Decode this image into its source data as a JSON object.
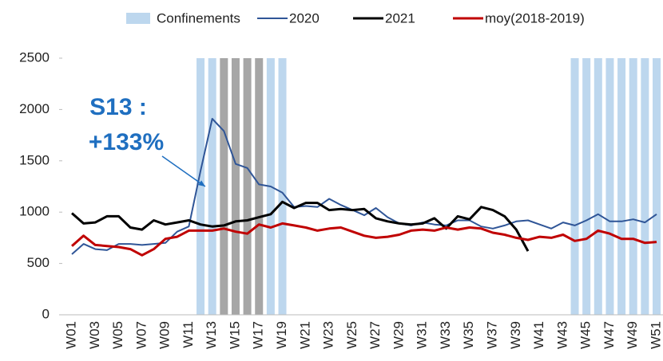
{
  "chart_data": {
    "type": "line",
    "categories": [
      "W01",
      null,
      "W03",
      null,
      "W05",
      null,
      "W07",
      null,
      "W09",
      null,
      "W11",
      null,
      "W13",
      null,
      "W15",
      null,
      "W17",
      null,
      "W19",
      null,
      "W21",
      null,
      "W23",
      null,
      "W25",
      null,
      "W27",
      null,
      "W29",
      null,
      "W31",
      null,
      "W33",
      null,
      "W35",
      null,
      "W37",
      null,
      "W39",
      null,
      "W41",
      null,
      "W43",
      null,
      "W45",
      null,
      "W47",
      null,
      "W49",
      null,
      "W51"
    ],
    "ylim": [
      0,
      2500
    ],
    "yticks": [
      0,
      500,
      1000,
      1500,
      2000,
      2500
    ],
    "annotation": [
      "S13 :",
      "+133%"
    ],
    "annotation_point": 12,
    "series": [
      {
        "name": "Confinements",
        "type": "bar",
        "color": "#bdd7ee",
        "values": [
          null,
          null,
          null,
          null,
          null,
          null,
          null,
          null,
          null,
          null,
          null,
          2500,
          2500,
          2500,
          2500,
          2500,
          2500,
          2500,
          2500,
          null,
          null,
          null,
          null,
          null,
          null,
          null,
          null,
          null,
          null,
          null,
          null,
          null,
          null,
          null,
          null,
          null,
          null,
          null,
          null,
          null,
          null,
          null,
          null,
          2500,
          2500,
          2500,
          2500,
          2500,
          2500,
          2500,
          2500
        ],
        "colors": [
          null,
          null,
          null,
          null,
          null,
          null,
          null,
          null,
          null,
          null,
          null,
          "#bdd7ee",
          "#bdd7ee",
          "#a6a6a6",
          "#a6a6a6",
          "#a6a6a6",
          "#a6a6a6",
          "#bdd7ee",
          "#bdd7ee",
          null,
          null,
          null,
          null,
          null,
          null,
          null,
          null,
          null,
          null,
          null,
          null,
          null,
          null,
          null,
          null,
          null,
          null,
          null,
          null,
          null,
          null,
          null,
          null,
          "#bdd7ee",
          "#bdd7ee",
          "#bdd7ee",
          "#bdd7ee",
          "#bdd7ee",
          "#bdd7ee",
          "#bdd7ee",
          "#bdd7ee"
        ]
      },
      {
        "name": "2020",
        "type": "line",
        "color": "#2f5597",
        "width": 2,
        "values": [
          590,
          690,
          640,
          630,
          690,
          690,
          680,
          690,
          700,
          810,
          860,
          1400,
          1910,
          1790,
          1470,
          1430,
          1270,
          1250,
          1190,
          1050,
          1060,
          1050,
          1130,
          1070,
          1020,
          970,
          1040,
          950,
          890,
          870,
          900,
          880,
          870,
          920,
          920,
          860,
          840,
          870,
          910,
          920,
          880,
          840,
          900,
          870,
          920,
          980,
          910,
          910,
          930,
          900,
          980
        ]
      },
      {
        "name": "2021",
        "type": "line",
        "color": "#000000",
        "width": 3,
        "values": [
          990,
          890,
          900,
          960,
          960,
          850,
          830,
          920,
          880,
          900,
          920,
          880,
          860,
          870,
          910,
          920,
          950,
          980,
          1100,
          1040,
          1090,
          1090,
          1020,
          1030,
          1020,
          1030,
          940,
          910,
          890,
          880,
          890,
          940,
          840,
          960,
          930,
          1050,
          1020,
          960,
          830,
          620,
          null,
          null,
          null,
          null,
          null,
          null,
          null,
          null,
          null,
          null,
          null
        ]
      },
      {
        "name": "moy(2018-2019)",
        "type": "line",
        "color": "#c00000",
        "width": 3,
        "values": [
          670,
          770,
          680,
          670,
          660,
          640,
          580,
          640,
          740,
          760,
          820,
          820,
          820,
          840,
          810,
          790,
          880,
          850,
          890,
          870,
          850,
          820,
          840,
          850,
          810,
          770,
          750,
          760,
          780,
          820,
          830,
          820,
          850,
          830,
          850,
          840,
          800,
          780,
          750,
          730,
          760,
          750,
          780,
          720,
          740,
          820,
          790,
          740,
          740,
          700,
          710
        ]
      }
    ]
  }
}
